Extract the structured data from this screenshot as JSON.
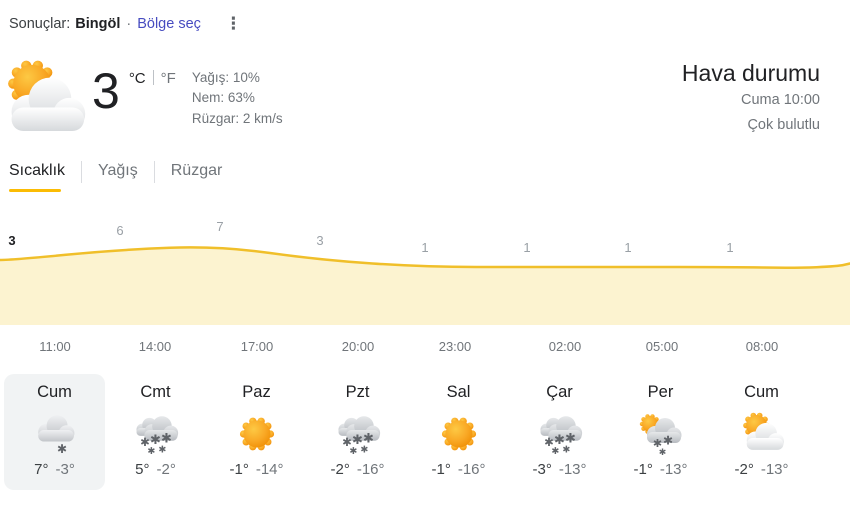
{
  "topbar": {
    "results_label": "Sonuçlar:",
    "location": "Bingöl",
    "separator": "·",
    "select_region_label": "Bölge seç",
    "more_options_icon": "kebab-menu"
  },
  "current": {
    "temperature": "3",
    "unit_celsius": "°C",
    "unit_fahrenheit": "°F",
    "condition_icon": "sun-behind-cloud",
    "precipitation": "Yağış: 10%",
    "humidity": "Nem: 63%",
    "wind": "Rüzgar: 2 km/s"
  },
  "header": {
    "title": "Hava durumu",
    "datetime": "Cuma 10:00",
    "condition": "Çok bulutlu"
  },
  "tabs": [
    {
      "label": "Sıcaklık",
      "active": true
    },
    {
      "label": "Yağış",
      "active": false
    },
    {
      "label": "Rüzgar",
      "active": false
    }
  ],
  "chart_data": {
    "type": "area",
    "x": [
      "11:00",
      "14:00",
      "17:00",
      "20:00",
      "23:00",
      "02:00",
      "05:00",
      "08:00"
    ],
    "values": [
      3,
      6,
      7,
      3,
      1,
      1,
      1,
      1
    ],
    "unit": "°C",
    "ylim": [
      -1,
      9
    ],
    "grid": false,
    "line_color": "#f0bf2a",
    "fill_color": "#fcf3d0"
  },
  "forecast": {
    "days": [
      {
        "name": "Cum",
        "icon": "cloud-light-snow",
        "high": "7°",
        "low": "-3°",
        "selected": true
      },
      {
        "name": "Cmt",
        "icon": "snow",
        "high": "5°",
        "low": "-2°",
        "selected": false
      },
      {
        "name": "Paz",
        "icon": "sunny",
        "high": "-1°",
        "low": "-14°",
        "selected": false
      },
      {
        "name": "Pzt",
        "icon": "snow",
        "high": "-2°",
        "low": "-16°",
        "selected": false
      },
      {
        "name": "Sal",
        "icon": "sunny",
        "high": "-1°",
        "low": "-16°",
        "selected": false
      },
      {
        "name": "Çar",
        "icon": "snow",
        "high": "-3°",
        "low": "-13°",
        "selected": false
      },
      {
        "name": "Per",
        "icon": "sun-snow-showers",
        "high": "-1°",
        "low": "-13°",
        "selected": false
      },
      {
        "name": "Cum",
        "icon": "sun-behind-cloud",
        "high": "-2°",
        "low": "-13°",
        "selected": false
      }
    ]
  },
  "colors": {
    "accent_yellow": "#fbbc04",
    "link": "#474cc0",
    "selected_day_bg": "#f1f3f4",
    "sun_orange": "#f9a11b",
    "snowflake_gray": "#5f6368"
  }
}
